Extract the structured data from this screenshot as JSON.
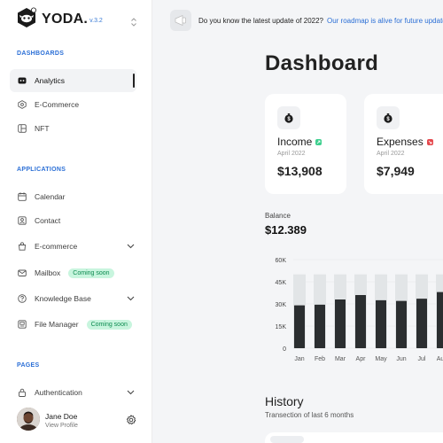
{
  "app": {
    "name": "YODA.",
    "version": "v.3.2"
  },
  "sidebar": {
    "sections": {
      "dashboards": "DASHBOARDS",
      "applications": "APPLICATIONS",
      "pages": "PAGES"
    },
    "items": {
      "analytics": "Analytics",
      "ecommerce": "E-Commerce",
      "nft": "NFT",
      "calendar": "Calendar",
      "contact": "Contact",
      "ecommerce_app": "E-commerce",
      "mailbox": "Mailbox",
      "knowledge_base": "Knowledge Base",
      "file_manager": "File Manager",
      "authentication": "Authentication"
    },
    "badges": {
      "mailbox": "Coming soon",
      "file_manager": "Coming soon"
    }
  },
  "profile": {
    "name": "Jane Doe",
    "link": "View Profile"
  },
  "banner": {
    "text": "Do you know the latest update of 2022?",
    "link": "Our roadmap is alive for future updates."
  },
  "page": {
    "title": "Dashboard"
  },
  "cards": {
    "income": {
      "title": "Income",
      "date": "April 2022",
      "value": "$13,908",
      "tag_color": "#3ecf8e"
    },
    "expenses": {
      "title": "Expenses",
      "date": "April 2022",
      "value": "$7,949",
      "tag_color": "#e5484d"
    }
  },
  "balance": {
    "label": "Balance",
    "value": "$12.389"
  },
  "chart_data": {
    "type": "bar",
    "categories": [
      "Jan",
      "Feb",
      "Mar",
      "Apr",
      "May",
      "Jun",
      "Jul",
      "Aug"
    ],
    "series": [
      {
        "values": [
          50000,
          50000,
          50000,
          50000,
          50000,
          50000,
          50000,
          50000
        ]
      },
      {
        "values": [
          29000,
          29500,
          33000,
          36000,
          32500,
          32000,
          33500,
          38000
        ]
      }
    ],
    "y_ticks": [
      "0",
      "15K",
      "30K",
      "45K",
      "60K"
    ],
    "ylim": [
      0,
      60000
    ],
    "colors": {
      "bar": "#2b2e30",
      "track": "#e2e5e7"
    },
    "grid": true
  },
  "history": {
    "title": "History",
    "subtitle": "Transection of last 6 months"
  },
  "colors": {
    "accent": "#2b6fd6",
    "badge_bg": "#c8f5de",
    "badge_text": "#0b8a4f"
  }
}
